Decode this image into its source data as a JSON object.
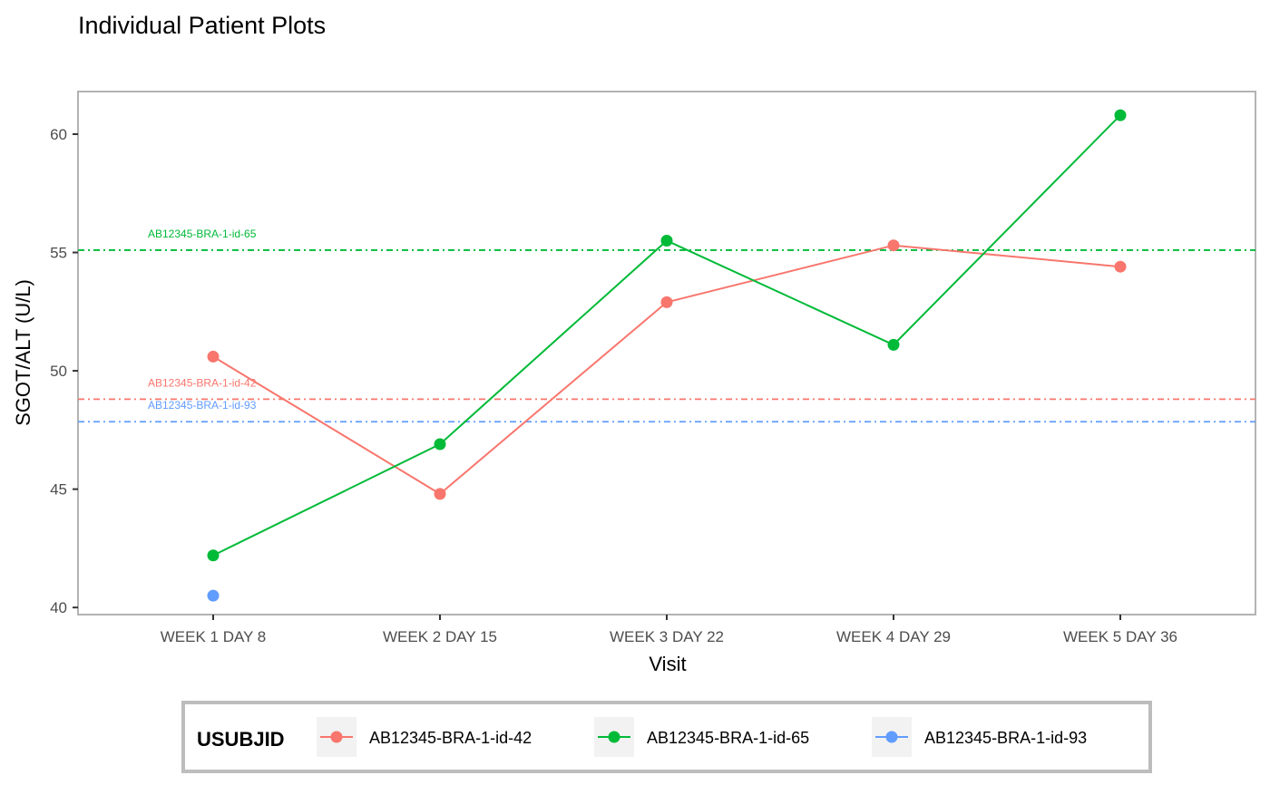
{
  "chart_data": {
    "type": "line",
    "title": "Individual Patient Plots",
    "xlabel": "Visit",
    "ylabel": "SGOT/ALT (U/L)",
    "categories": [
      "WEEK 1 DAY 8",
      "WEEK 2 DAY 15",
      "WEEK 3 DAY 22",
      "WEEK 4 DAY 29",
      "WEEK 5 DAY 36"
    ],
    "ylim": [
      39.7,
      61.8
    ],
    "yticks": [
      40,
      45,
      50,
      55,
      60
    ],
    "grid": false,
    "legend": {
      "title": "USUBJID",
      "placement": "bottom"
    },
    "series": [
      {
        "name": "AB12345-BRA-1-id-42",
        "color": "#F8766D",
        "values": [
          50.6,
          44.8,
          52.9,
          55.3,
          54.4
        ]
      },
      {
        "name": "AB12345-BRA-1-id-65",
        "color": "#00BA38",
        "values": [
          42.2,
          46.9,
          55.5,
          51.1,
          60.8
        ]
      },
      {
        "name": "AB12345-BRA-1-id-93",
        "color": "#619CFF",
        "values": [
          40.5,
          null,
          null,
          null,
          null
        ]
      }
    ],
    "reference_lines": [
      {
        "label": "AB12345-BRA-1-id-65",
        "color": "#00BA38",
        "y": 55.1
      },
      {
        "label": "AB12345-BRA-1-id-42",
        "color": "#F8766D",
        "y": 48.8
      },
      {
        "label": "AB12345-BRA-1-id-93",
        "color": "#619CFF",
        "y": 47.85
      }
    ]
  }
}
